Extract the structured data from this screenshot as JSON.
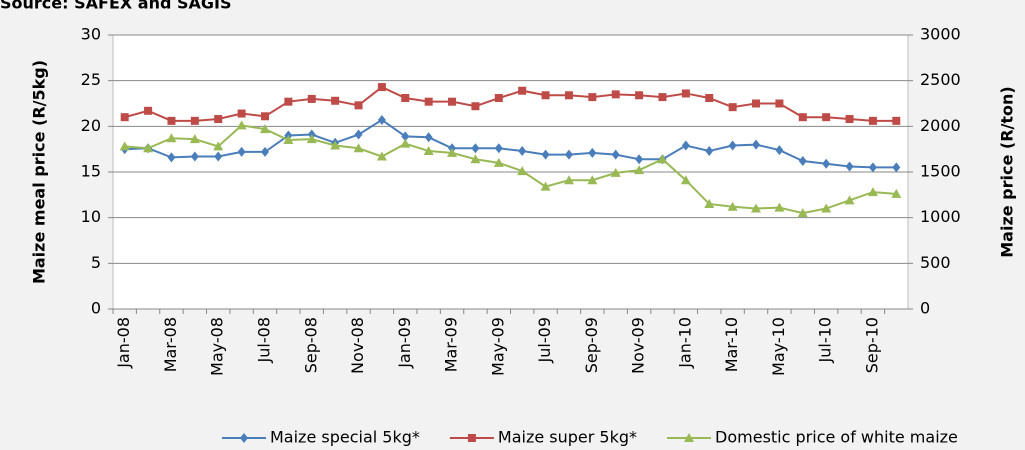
{
  "chart_data": {
    "type": "line",
    "source": "Source: SAFEX and SAGIS",
    "y_label": "Maize meal price (R/5kg)",
    "y2_label": "Maize price (R/ton)",
    "categories": [
      "Jan-08",
      null,
      "Mar-08",
      null,
      "May-08",
      null,
      "Jul-08",
      null,
      "Sep-08",
      null,
      "Nov-08",
      null,
      "Jan-09",
      null,
      "Mar-09",
      null,
      "May-09",
      null,
      "Jul-09",
      null,
      "Sep-09",
      null,
      "Nov-09",
      null,
      "Jan-10",
      null,
      "Mar-10",
      null,
      "May-10",
      null,
      "Jul-10",
      null,
      "Sep-10",
      null
    ],
    "ylim": [
      0,
      30
    ],
    "yticks": [
      0,
      5,
      10,
      15,
      20,
      25,
      30
    ],
    "y2lim": [
      0,
      3000
    ],
    "y2ticks": [
      0,
      500,
      1000,
      1500,
      2000,
      2500,
      3000
    ],
    "grid": true,
    "series": [
      {
        "name": "Maize special 5kg*",
        "color": "#4a7ebb",
        "marker": "diamond",
        "values": [
          17.5,
          17.6,
          16.6,
          16.7,
          16.7,
          17.2,
          17.2,
          19.0,
          19.1,
          18.2,
          19.1,
          20.7,
          18.9,
          18.8,
          17.6,
          17.6,
          17.6,
          17.3,
          16.9,
          16.9,
          17.1,
          16.9,
          16.4,
          16.4,
          17.9,
          17.3,
          17.9,
          18.0,
          17.4,
          16.2,
          15.9,
          15.6,
          15.5,
          15.5
        ]
      },
      {
        "name": "Maize super 5kg*",
        "color": "#be4b48",
        "marker": "square",
        "values": [
          21.0,
          21.7,
          20.6,
          20.6,
          20.8,
          21.4,
          21.1,
          22.7,
          23.0,
          22.8,
          22.3,
          24.3,
          23.1,
          22.7,
          22.7,
          22.2,
          23.1,
          23.9,
          23.4,
          23.4,
          23.2,
          23.5,
          23.4,
          23.2,
          23.6,
          23.1,
          22.1,
          22.5,
          22.5,
          21.0,
          21.0,
          20.8,
          20.6,
          20.6
        ]
      },
      {
        "name": "Domestic price of white maize",
        "color": "#98b954",
        "marker": "triangle",
        "axis": "y2",
        "values": [
          1780,
          1760,
          1870,
          1860,
          1780,
          2010,
          1970,
          1850,
          1860,
          1790,
          1760,
          1670,
          1810,
          1730,
          1710,
          1640,
          1600,
          1510,
          1340,
          1410,
          1410,
          1490,
          1520,
          1640,
          1410,
          1150,
          1120,
          1100,
          1110,
          1050,
          1100,
          1190,
          1280,
          1260
        ]
      }
    ]
  }
}
